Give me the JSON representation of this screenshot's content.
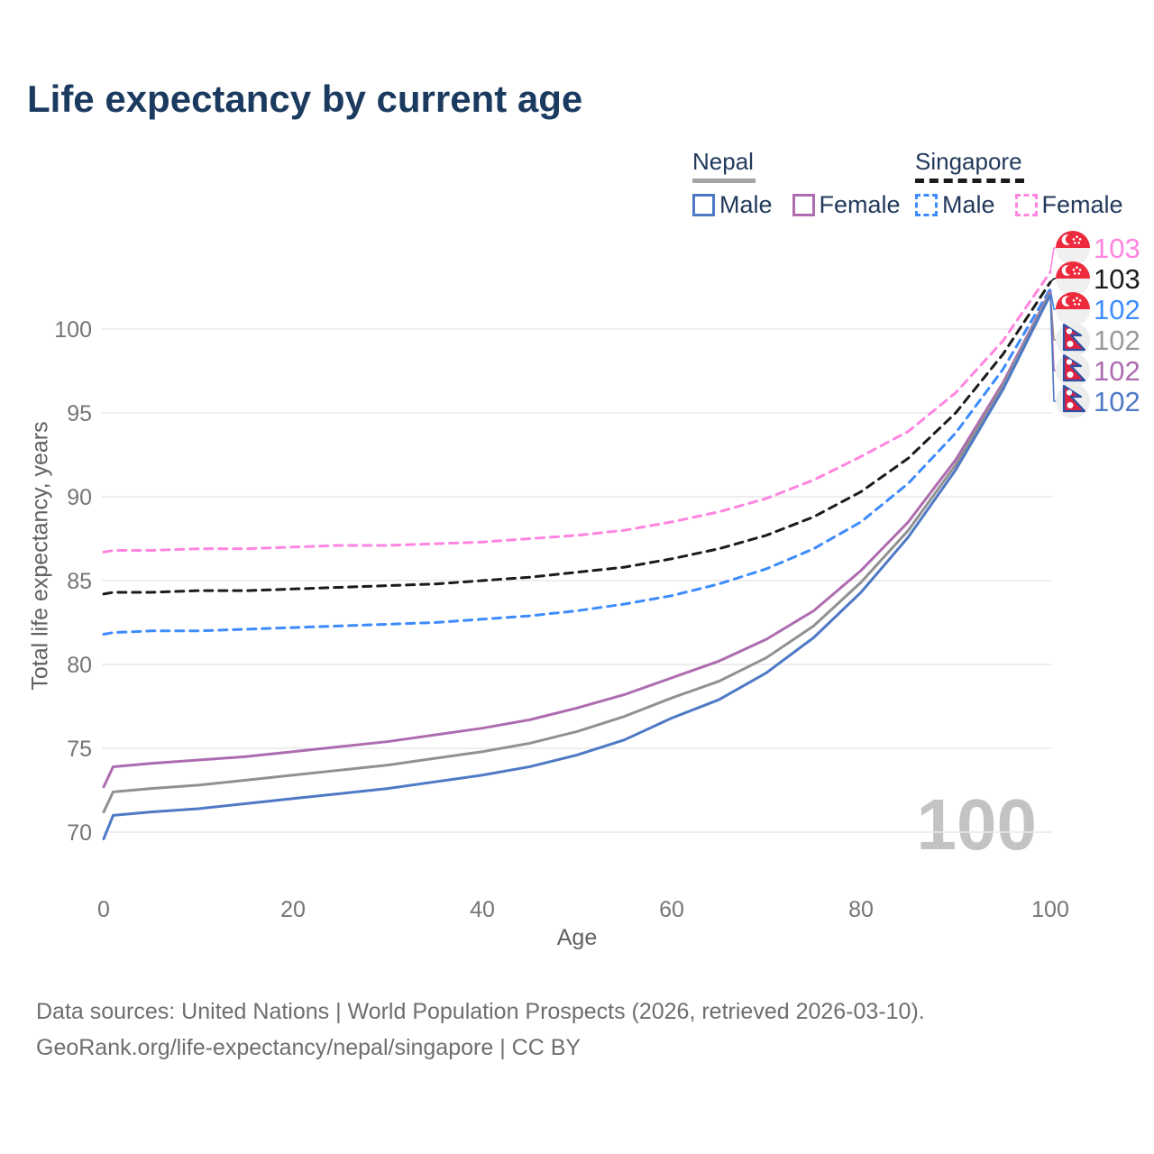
{
  "title": "Life expectancy by current age",
  "watermark": "100",
  "colors": {
    "title": "#1b3a5f",
    "tick_text": "#757575",
    "axis_title_text": "#616161",
    "gridline": "#e9e9e9",
    "watermark": "#c3c3c3",
    "footer_text": "#6e6e6e",
    "nepal_male": "#4e79c5",
    "nepal_total": "#919191",
    "nepal_female": "#ad6cb0",
    "singapore_male": "#3d8bfd",
    "singapore_total": "#1b1b1b",
    "singapore_female": "#ff85e0",
    "singapore_flag_red": "#ee2a3d",
    "nepal_flag_crimson": "#dc2342",
    "nepal_flag_blue": "#2c50a5"
  },
  "legend": {
    "groups": [
      {
        "label": "Nepal",
        "underline": "solid",
        "underline_color": "#a3a3a3",
        "items": [
          {
            "label": "Male",
            "color": "#4e79c5",
            "dashed": false
          },
          {
            "label": "Female",
            "color": "#ad6cb0",
            "dashed": false
          }
        ]
      },
      {
        "label": "Singapore",
        "underline": "dashed",
        "underline_color": "#1b1b1b",
        "items": [
          {
            "label": "Male",
            "color": "#3d8bfd",
            "dashed": true
          },
          {
            "label": "Female",
            "color": "#ff85e0",
            "dashed": true
          }
        ]
      }
    ]
  },
  "axes": {
    "y_label": "Total life expectancy, years",
    "x_label": "Age"
  },
  "chart_data": {
    "type": "line",
    "title": "Life expectancy by current age",
    "xlabel": "Age",
    "ylabel": "Total life expectancy, years",
    "xlim": [
      0,
      100
    ],
    "ylim": [
      68.5,
      104.5
    ],
    "x_ticks": [
      0,
      20,
      40,
      60,
      80,
      100
    ],
    "y_ticks": [
      70,
      75,
      80,
      85,
      90,
      95,
      100
    ],
    "grid": "horizontal",
    "legend_position": "top-right",
    "x": [
      0,
      1,
      5,
      10,
      15,
      20,
      25,
      30,
      35,
      40,
      45,
      50,
      55,
      60,
      65,
      70,
      75,
      80,
      85,
      90,
      95,
      100
    ],
    "series": [
      {
        "name": "Singapore Female",
        "country": "Singapore",
        "sex": "Female",
        "color": "#ff85e0",
        "dash": true,
        "values": [
          86.7,
          86.8,
          86.8,
          86.9,
          86.9,
          87.0,
          87.1,
          87.1,
          87.2,
          87.3,
          87.5,
          87.7,
          88.0,
          88.5,
          89.1,
          89.9,
          91.0,
          92.4,
          93.9,
          96.2,
          99.3,
          103.4
        ]
      },
      {
        "name": "Singapore Total",
        "country": "Singapore",
        "sex": "Both",
        "color": "#1b1b1b",
        "dash": true,
        "values": [
          84.2,
          84.3,
          84.3,
          84.4,
          84.4,
          84.5,
          84.6,
          84.7,
          84.8,
          85.0,
          85.2,
          85.5,
          85.8,
          86.3,
          86.9,
          87.7,
          88.8,
          90.3,
          92.3,
          95.0,
          98.5,
          102.8
        ]
      },
      {
        "name": "Singapore Male",
        "country": "Singapore",
        "sex": "Male",
        "color": "#3d8bfd",
        "dash": true,
        "values": [
          81.8,
          81.9,
          82.0,
          82.0,
          82.1,
          82.2,
          82.3,
          82.4,
          82.5,
          82.7,
          82.9,
          83.2,
          83.6,
          84.1,
          84.8,
          85.7,
          86.9,
          88.5,
          90.8,
          93.8,
          97.6,
          102.4
        ]
      },
      {
        "name": "Nepal Female",
        "country": "Nepal",
        "sex": "Female",
        "color": "#ad6cb0",
        "dash": false,
        "values": [
          72.7,
          73.9,
          74.1,
          74.3,
          74.5,
          74.8,
          75.1,
          75.4,
          75.8,
          76.2,
          76.7,
          77.4,
          78.2,
          79.2,
          80.2,
          81.5,
          83.2,
          85.6,
          88.5,
          92.2,
          96.8,
          102.25
        ]
      },
      {
        "name": "Nepal Total",
        "country": "Nepal",
        "sex": "Both",
        "color": "#919191",
        "dash": false,
        "values": [
          71.2,
          72.4,
          72.6,
          72.8,
          73.1,
          73.4,
          73.7,
          74.0,
          74.4,
          74.8,
          75.3,
          76.0,
          76.9,
          78.0,
          79.0,
          80.4,
          82.3,
          84.9,
          88.0,
          91.9,
          96.6,
          102.2
        ]
      },
      {
        "name": "Nepal Male",
        "country": "Nepal",
        "sex": "Male",
        "color": "#4e79c5",
        "dash": false,
        "values": [
          69.6,
          71.0,
          71.2,
          71.4,
          71.7,
          72.0,
          72.3,
          72.6,
          73.0,
          73.4,
          73.9,
          74.6,
          75.5,
          76.8,
          77.9,
          79.5,
          81.6,
          84.3,
          87.6,
          91.6,
          96.4,
          102.05
        ]
      }
    ]
  },
  "end_labels": [
    {
      "text": "103",
      "flag": "singapore",
      "color": "#ff85e0",
      "series_index": 0
    },
    {
      "text": "103",
      "flag": "singapore",
      "color": "#1b1b1b",
      "series_index": 1
    },
    {
      "text": "102",
      "flag": "singapore",
      "color": "#3d8bfd",
      "series_index": 2
    },
    {
      "text": "102",
      "flag": "nepal",
      "color": "#9a9a9a",
      "series_index": 4
    },
    {
      "text": "102",
      "flag": "nepal",
      "color": "#ad6cb0",
      "series_index": 3
    },
    {
      "text": "102",
      "flag": "nepal",
      "color": "#4e79c5",
      "series_index": 5
    }
  ],
  "end_label_series_order": [
    "Singapore Female",
    "Singapore Total",
    "Singapore Male",
    "Nepal Total",
    "Nepal Female",
    "Nepal Male"
  ],
  "footer": {
    "line1": "Data sources: United Nations | World Population Prospects (2026, retrieved 2026-03-10).",
    "line2": "GeoRank.org/life-expectancy/nepal/singapore | CC BY"
  }
}
